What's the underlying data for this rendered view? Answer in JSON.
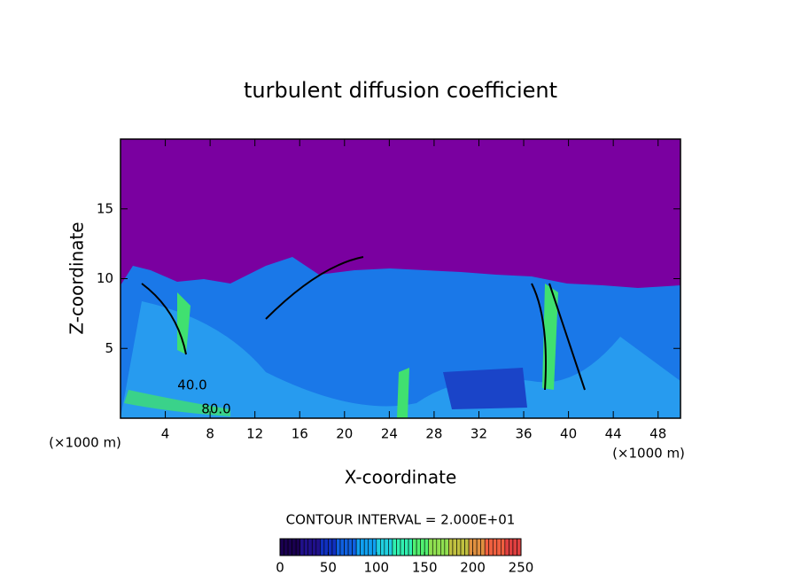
{
  "chart_data": {
    "type": "contour",
    "title": "turbulent diffusion coefficient",
    "x_label": "X-coordinate",
    "y_label": "Z-coordinate",
    "x_unit_left": "(×1000 m)",
    "x_unit_right": "(×1000 m)",
    "xlim": [
      0,
      50
    ],
    "xticks": [
      4,
      8,
      12,
      16,
      20,
      24,
      28,
      32,
      36,
      40,
      44,
      48
    ],
    "ylim": [
      0,
      20
    ],
    "yticks": [
      5,
      10,
      15
    ],
    "contour_labels": [
      "40.0",
      "80.0"
    ],
    "contour_interval_text": "CONTOUR INTERVAL = 2.000E+01",
    "colorbar": {
      "lim": [
        0,
        250
      ],
      "ticks": [
        0,
        50,
        100,
        150,
        200,
        250
      ],
      "colormap": [
        "#1a0050",
        "#20108a",
        "#1030c0",
        "#1060e0",
        "#10a0f0",
        "#20d0e0",
        "#30f0b0",
        "#50f070",
        "#90e050",
        "#c0c040",
        "#e09040",
        "#f06040",
        "#e04040"
      ]
    }
  }
}
